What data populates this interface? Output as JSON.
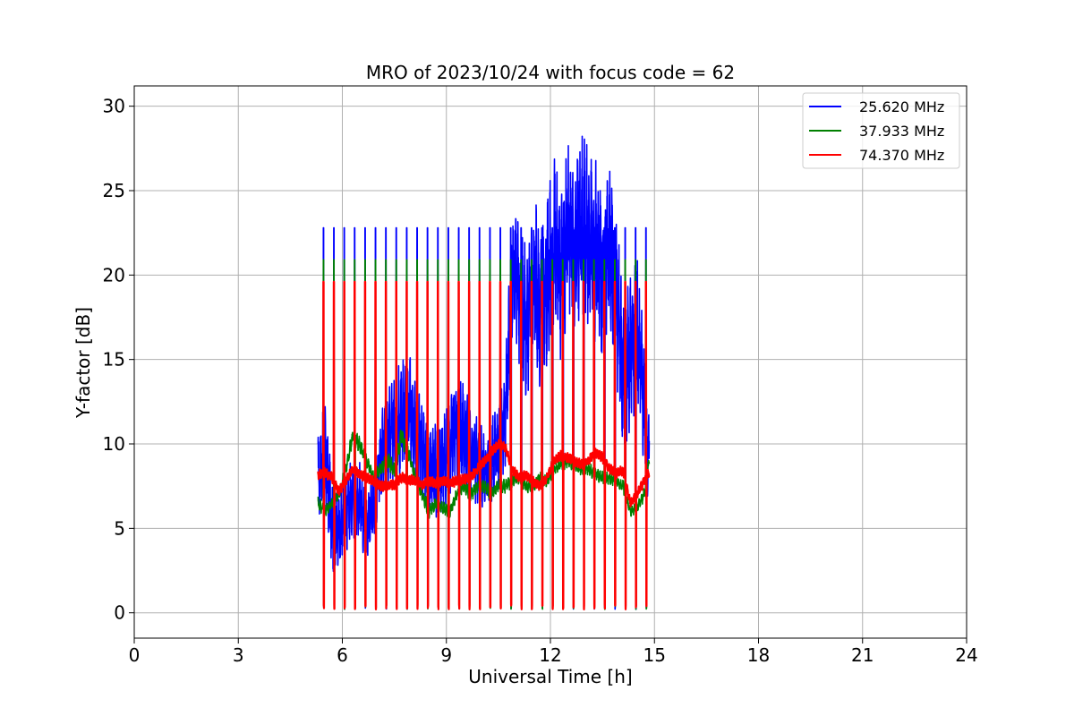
{
  "chart_data": {
    "type": "line",
    "title": "MRO of 2023/10/24 with focus code = 62",
    "xlabel": "Universal Time [h]",
    "ylabel": "Y-factor [dB]",
    "xlim": [
      0,
      24
    ],
    "ylim": [
      -1.5,
      31.2
    ],
    "xticks": [
      0,
      3,
      6,
      9,
      12,
      15,
      18,
      21,
      24
    ],
    "yticks": [
      0,
      5,
      10,
      15,
      20,
      25,
      30
    ],
    "grid": true,
    "legend_position": "top-right",
    "calibration_cycle": {
      "start": 5.45,
      "end": 14.85,
      "period": 0.3,
      "peaks": {
        "25.620 MHz": 22.8,
        "37.933 MHz": 20.9,
        "74.370 MHz": 19.6
      }
    },
    "series": [
      {
        "name": "25.620 MHz",
        "color": "#0000ff",
        "x": [
          5.3,
          5.5,
          5.7,
          5.9,
          6.1,
          6.3,
          6.5,
          6.7,
          6.9,
          7.1,
          7.3,
          7.5,
          7.7,
          7.9,
          8.1,
          8.3,
          8.5,
          8.7,
          8.9,
          9.1,
          9.3,
          9.5,
          9.7,
          9.9,
          10.1,
          10.3,
          10.5,
          10.7,
          10.9,
          11.1,
          11.3,
          11.5,
          11.7,
          11.9,
          12.1,
          12.3,
          12.5,
          12.7,
          12.9,
          13.1,
          13.3,
          13.5,
          13.7,
          13.9,
          14.1,
          14.3,
          14.5,
          14.7,
          14.85
        ],
        "y": [
          8.0,
          9.5,
          5.5,
          4.5,
          6.0,
          7.0,
          6.5,
          5.0,
          6.5,
          9.0,
          10.5,
          11.0,
          11.5,
          12.0,
          11.0,
          9.5,
          8.0,
          8.5,
          9.0,
          10.0,
          11.0,
          10.5,
          9.5,
          9.0,
          8.5,
          9.0,
          10.0,
          11.5,
          20.0,
          19.0,
          17.0,
          20.5,
          18.0,
          19.5,
          22.0,
          20.0,
          22.5,
          21.0,
          23.0,
          22.0,
          21.5,
          20.0,
          22.0,
          19.0,
          14.0,
          15.5,
          17.0,
          12.0,
          9.0
        ],
        "amplitude": [
          2.5,
          3.0,
          3.0,
          2.5,
          2.5,
          2.5,
          2.5,
          2.0,
          2.5,
          2.5,
          3.0,
          3.0,
          3.5,
          3.5,
          3.0,
          3.0,
          2.5,
          3.0,
          3.0,
          3.0,
          3.0,
          3.0,
          3.0,
          2.5,
          2.5,
          2.5,
          3.0,
          3.0,
          4.5,
          4.5,
          4.5,
          5.0,
          5.0,
          5.0,
          5.0,
          5.0,
          5.0,
          5.5,
          5.5,
          5.5,
          5.5,
          5.5,
          5.0,
          5.0,
          4.5,
          4.5,
          4.5,
          4.0,
          2.5
        ]
      },
      {
        "name": "37.933 MHz",
        "color": "#008000",
        "x": [
          5.3,
          5.5,
          5.7,
          5.9,
          6.1,
          6.3,
          6.5,
          6.7,
          6.9,
          7.1,
          7.3,
          7.5,
          7.7,
          7.9,
          8.1,
          8.3,
          8.5,
          8.7,
          8.9,
          9.1,
          9.3,
          9.5,
          9.7,
          9.9,
          10.1,
          10.3,
          10.5,
          10.7,
          10.9,
          11.1,
          11.3,
          11.5,
          11.7,
          11.9,
          12.1,
          12.3,
          12.5,
          12.7,
          12.9,
          13.1,
          13.3,
          13.5,
          13.7,
          13.9,
          14.1,
          14.3,
          14.5,
          14.7,
          14.85
        ],
        "y": [
          6.5,
          6.0,
          6.5,
          7.0,
          8.5,
          10.5,
          10.0,
          9.0,
          8.0,
          8.5,
          9.0,
          8.5,
          10.5,
          9.5,
          8.0,
          7.0,
          6.0,
          6.5,
          6.2,
          6.0,
          7.0,
          7.5,
          7.0,
          7.5,
          7.5,
          7.0,
          7.5,
          7.5,
          7.8,
          8.0,
          7.5,
          7.5,
          8.0,
          7.8,
          8.5,
          8.8,
          9.0,
          8.8,
          8.5,
          8.5,
          8.2,
          8.0,
          8.0,
          7.8,
          7.5,
          6.0,
          6.2,
          7.0,
          9.0
        ],
        "amplitude": [
          0.4,
          0.4,
          0.3,
          0.3,
          0.4,
          0.5,
          0.5,
          0.4,
          0.4,
          0.4,
          0.5,
          0.5,
          0.6,
          0.5,
          0.4,
          0.4,
          0.4,
          0.4,
          0.4,
          0.4,
          0.4,
          0.4,
          0.4,
          0.4,
          0.4,
          0.4,
          0.4,
          0.4,
          0.4,
          0.4,
          0.4,
          0.4,
          0.4,
          0.4,
          0.4,
          0.4,
          0.4,
          0.4,
          0.4,
          0.4,
          0.4,
          0.4,
          0.4,
          0.4,
          0.4,
          0.3,
          0.3,
          0.4,
          0.4
        ]
      },
      {
        "name": "74.370 MHz",
        "color": "#ff0000",
        "x": [
          5.3,
          5.5,
          5.7,
          5.9,
          6.1,
          6.3,
          6.5,
          6.7,
          6.9,
          7.1,
          7.3,
          7.5,
          7.7,
          7.9,
          8.1,
          8.3,
          8.5,
          8.7,
          8.9,
          9.1,
          9.3,
          9.5,
          9.7,
          9.9,
          10.1,
          10.3,
          10.5,
          10.7,
          10.9,
          11.1,
          11.3,
          11.5,
          11.7,
          11.9,
          12.1,
          12.3,
          12.5,
          12.7,
          12.9,
          13.1,
          13.3,
          13.5,
          13.7,
          13.9,
          14.1,
          14.3,
          14.5,
          14.7,
          14.85
        ],
        "y": [
          8.2,
          8.3,
          8.0,
          7.2,
          7.8,
          8.5,
          8.2,
          8.0,
          7.8,
          7.5,
          7.5,
          7.6,
          8.0,
          7.9,
          7.8,
          7.6,
          7.8,
          7.7,
          7.8,
          7.7,
          7.8,
          7.9,
          8.0,
          8.5,
          9.0,
          9.5,
          10.0,
          9.8,
          8.5,
          8.0,
          8.2,
          7.8,
          7.5,
          8.0,
          9.0,
          9.3,
          9.2,
          9.0,
          8.8,
          9.0,
          9.5,
          9.2,
          8.5,
          8.3,
          8.4,
          6.5,
          7.0,
          7.8,
          8.3
        ],
        "amplitude": [
          0.3,
          0.3,
          0.3,
          0.3,
          0.3,
          0.3,
          0.3,
          0.3,
          0.3,
          0.3,
          0.3,
          0.3,
          0.3,
          0.3,
          0.3,
          0.3,
          0.3,
          0.3,
          0.3,
          0.3,
          0.3,
          0.3,
          0.3,
          0.3,
          0.3,
          0.3,
          0.3,
          0.3,
          0.3,
          0.3,
          0.3,
          0.3,
          0.3,
          0.3,
          0.3,
          0.3,
          0.3,
          0.3,
          0.3,
          0.3,
          0.3,
          0.3,
          0.3,
          0.3,
          0.3,
          0.3,
          0.3,
          0.3,
          0.3
        ]
      }
    ]
  }
}
